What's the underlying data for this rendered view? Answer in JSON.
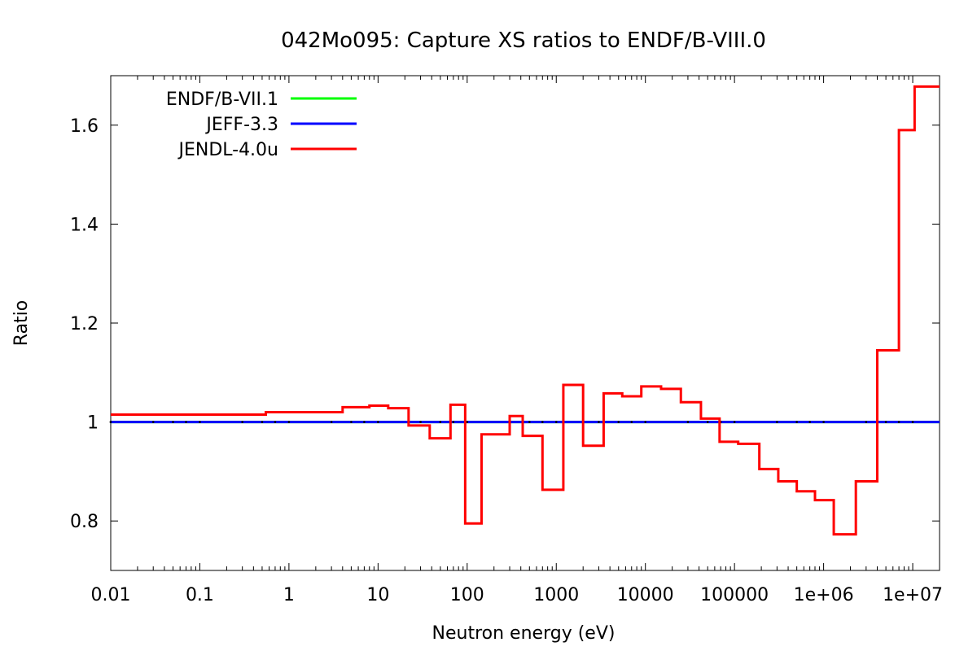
{
  "chart_data": {
    "type": "line",
    "title": "042Mo095: Capture XS ratios to ENDF/B-VIII.0",
    "xlabel": "Neutron energy (eV)",
    "ylabel": "Ratio",
    "xscale": "log",
    "xlim": [
      0.01,
      20000000
    ],
    "ylim": [
      0.7,
      1.7
    ],
    "x_tick_values": [
      0.01,
      0.1,
      1,
      10,
      100,
      1000,
      10000,
      100000,
      1000000,
      10000000
    ],
    "x_tick_labels": [
      "0.01",
      "0.1",
      "1",
      "10",
      "100",
      "1000",
      "10000",
      "100000",
      "1e+06",
      "1e+07"
    ],
    "y_tick_values": [
      0.8,
      1.0,
      1.2,
      1.4,
      1.6
    ],
    "y_tick_labels": [
      "0.8",
      "1",
      "1.2",
      "1.4",
      "1.6"
    ],
    "grid": false,
    "legend_position": "top-left",
    "series": [
      {
        "name": "ENDF/B-VII.1",
        "color": "#00ff00",
        "step": false,
        "x": [
          0.01,
          20000000
        ],
        "y": [
          1.0,
          1.0
        ]
      },
      {
        "name": "JEFF-3.3",
        "color": "#0000ff",
        "step": false,
        "x": [
          0.01,
          20000000
        ],
        "y": [
          1.0,
          1.0
        ]
      },
      {
        "name": "JENDL-4.0u",
        "color": "#ff0000",
        "step": true,
        "x": [
          0.01,
          0.55,
          4,
          8,
          13,
          22,
          38,
          65,
          95,
          145,
          300,
          420,
          700,
          1200,
          2000,
          3400,
          5500,
          9000,
          15000,
          25000,
          42000,
          68000,
          110000,
          190000,
          310000,
          500000,
          800000,
          1300000,
          2300000,
          4000000,
          7000000,
          10500000,
          20000000
        ],
        "y": [
          1.015,
          1.02,
          1.03,
          1.033,
          1.028,
          0.993,
          0.967,
          1.035,
          0.795,
          0.975,
          1.012,
          0.972,
          0.863,
          1.075,
          0.952,
          1.058,
          1.052,
          1.072,
          1.067,
          1.04,
          1.007,
          0.96,
          0.956,
          0.905,
          0.88,
          0.86,
          0.842,
          0.773,
          0.88,
          1.145,
          1.59,
          1.678,
          1.678
        ]
      }
    ]
  }
}
